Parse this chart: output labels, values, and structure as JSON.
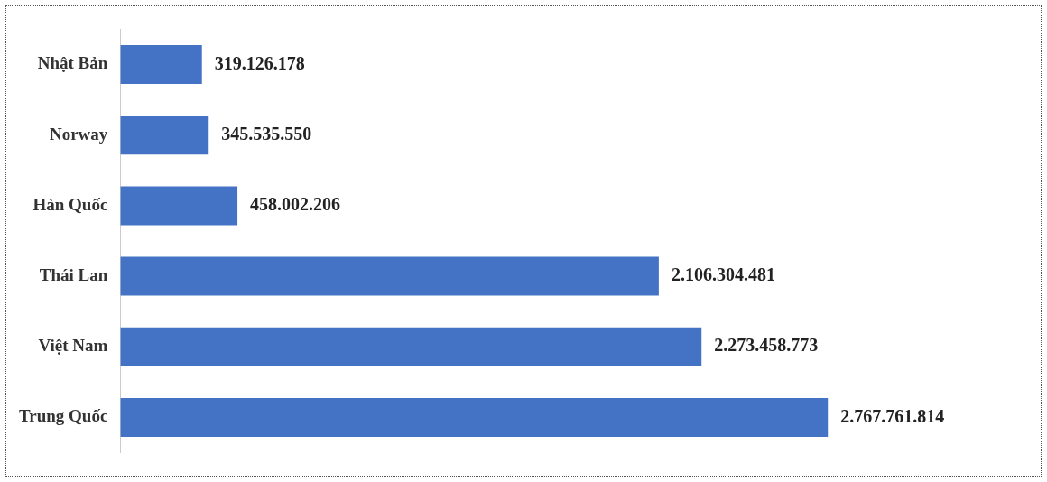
{
  "chart_data": {
    "type": "bar",
    "orientation": "horizontal",
    "categories": [
      "Nhật Bản",
      "Norway",
      "Hàn Quốc",
      "Thái Lan",
      "Việt Nam",
      "Trung Quốc"
    ],
    "values": [
      319126178,
      345535550,
      458002206,
      2106304481,
      2273458773,
      2767761814
    ],
    "value_labels": [
      "319.126.178",
      "345.535.550",
      "458.002.206",
      "2.106.304.481",
      "2.273.458.773",
      "2.767.761.814"
    ],
    "color": "#4472c4"
  }
}
